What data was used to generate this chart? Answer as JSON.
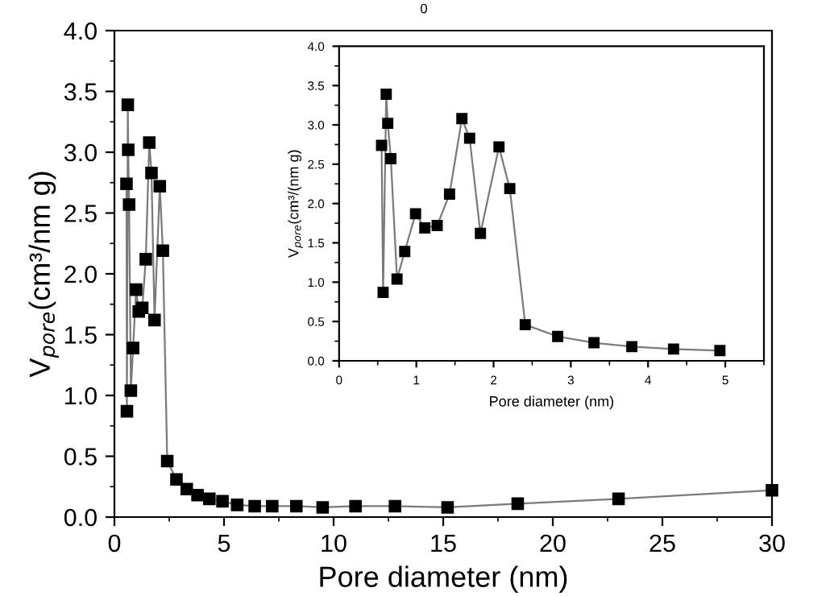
{
  "chart_data": [
    {
      "type": "line",
      "xlabel": "Pore diameter (nm)",
      "ylabel": "V$_{pore}$(cm³/nm g)",
      "annotations": [
        "0"
      ],
      "x": [
        0.55,
        0.57,
        0.61,
        0.63,
        0.67,
        0.75,
        0.85,
        0.99,
        1.11,
        1.27,
        1.43,
        1.59,
        1.69,
        1.83,
        2.07,
        2.21,
        2.41,
        2.83,
        3.3,
        3.79,
        4.33,
        4.93,
        5.6,
        6.4,
        7.2,
        8.3,
        9.5,
        11.0,
        12.8,
        15.2,
        18.4,
        23.0,
        30.0
      ],
      "series": [
        {
          "color": "#000000",
          "values": [
            2.74,
            0.87,
            3.39,
            3.02,
            2.57,
            1.04,
            1.39,
            1.87,
            1.69,
            1.72,
            2.12,
            3.08,
            2.83,
            1.62,
            2.72,
            2.19,
            0.46,
            0.31,
            0.23,
            0.18,
            0.15,
            0.13,
            0.1,
            0.09,
            0.09,
            0.09,
            0.08,
            0.09,
            0.09,
            0.08,
            0.11,
            0.15,
            0.22
          ]
        }
      ],
      "xlim": [
        0,
        30
      ],
      "xticks": [
        0,
        5,
        10,
        15,
        20,
        25,
        30
      ],
      "ylim": [
        0,
        4
      ],
      "yticks": [
        {
          "value": 0,
          "label": "0.0"
        },
        {
          "value": 0.5,
          "label": "0.5"
        },
        {
          "value": 1,
          "label": "1.0"
        },
        {
          "value": 1.5,
          "label": "1.5"
        },
        {
          "value": 2,
          "label": "2.0"
        },
        {
          "value": 2.5,
          "label": "2.5"
        },
        {
          "value": 3,
          "label": "3.0"
        },
        {
          "value": 3.5,
          "label": "3.5"
        },
        {
          "value": 4,
          "label": "4.0"
        }
      ],
      "marker": "square",
      "grid": false,
      "legend": false
    },
    {
      "type": "line",
      "xlabel": "Pore diameter (nm)",
      "ylabel": "V$_{pore}$(cm³/(nm g)",
      "x": [
        0.55,
        0.57,
        0.61,
        0.63,
        0.67,
        0.75,
        0.85,
        0.99,
        1.11,
        1.27,
        1.43,
        1.59,
        1.69,
        1.83,
        2.07,
        2.21,
        2.41,
        2.83,
        3.3,
        3.79,
        4.33,
        4.93
      ],
      "series": [
        {
          "color": "#000000",
          "values": [
            2.74,
            0.87,
            3.39,
            3.02,
            2.57,
            1.04,
            1.39,
            1.87,
            1.69,
            1.72,
            2.12,
            3.08,
            2.83,
            1.62,
            2.72,
            2.19,
            0.46,
            0.31,
            0.23,
            0.18,
            0.15,
            0.13
          ]
        }
      ],
      "xlim": [
        0,
        5.5
      ],
      "xticks": [
        0,
        1,
        2,
        3,
        4,
        5
      ],
      "ylim": [
        0,
        4
      ],
      "yticks": [
        {
          "value": 0,
          "label": "0.0"
        },
        {
          "value": 0.5,
          "label": "0.5"
        },
        {
          "value": 1,
          "label": "1.0"
        },
        {
          "value": 1.5,
          "label": "1.5"
        },
        {
          "value": 2,
          "label": "2.0"
        },
        {
          "value": 2.5,
          "label": "2.5"
        },
        {
          "value": 3,
          "label": "3.0"
        },
        {
          "value": 3.5,
          "label": "3.5"
        },
        {
          "value": 4,
          "label": "4.0"
        }
      ],
      "marker": "square",
      "grid": false,
      "legend": false
    }
  ]
}
